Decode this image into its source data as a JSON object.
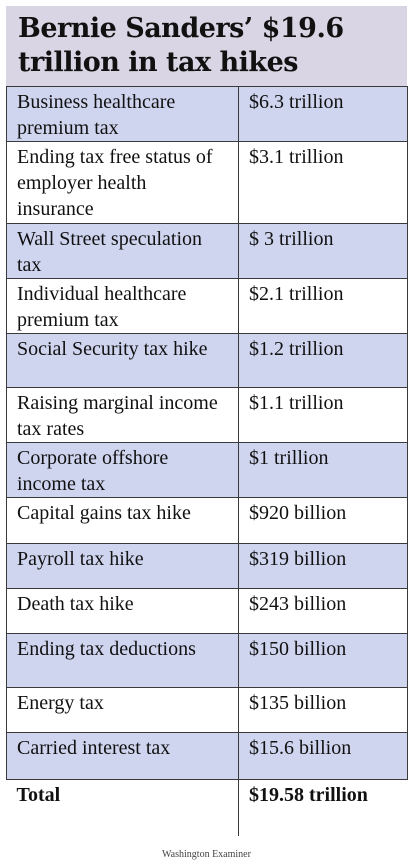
{
  "title": "Bernie Sanders’ $19.6 trillion in tax hikes",
  "rows": [
    {
      "item": "Business healthcare premium tax",
      "amount": "$6.3 trillion",
      "shaded": true
    },
    {
      "item": "Ending tax free status of employer health insurance",
      "amount": "$3.1 trillion",
      "shaded": false
    },
    {
      "item": "Wall Street speculation tax",
      "amount": "$ 3 trillion",
      "shaded": true
    },
    {
      "item": "Individual healthcare premium tax",
      "amount": "$2.1 trillion",
      "shaded": false
    },
    {
      "item": "Social Security tax hike",
      "amount": "$1.2 trillion",
      "shaded": true
    },
    {
      "item": "Raising marginal income tax rates",
      "amount": "$1.1 trillion",
      "shaded": false
    },
    {
      "item": "Corporate offshore income tax",
      "amount": "$1 trillion",
      "shaded": true
    },
    {
      "item": "Capital gains tax hike",
      "amount": "$920 billion",
      "shaded": false
    },
    {
      "item": "Payroll tax hike",
      "amount": "$319 billion",
      "shaded": true
    },
    {
      "item": "Death tax hike",
      "amount": "$243 billion",
      "shaded": false
    },
    {
      "item": "Ending tax deductions",
      "amount": "$150 billion",
      "shaded": true
    },
    {
      "item": "Energy tax",
      "amount": "$135 billion",
      "shaded": false
    },
    {
      "item": "Carried interest tax",
      "amount": "$15.6 billion",
      "shaded": true
    }
  ],
  "total": {
    "label": "Total",
    "amount": "$19.58 trillion"
  },
  "source": "Washington Examiner",
  "colors": {
    "title_bg": "#d9d5e4",
    "shaded_row": "#cfd5ef",
    "border": "#3a3a3a"
  }
}
